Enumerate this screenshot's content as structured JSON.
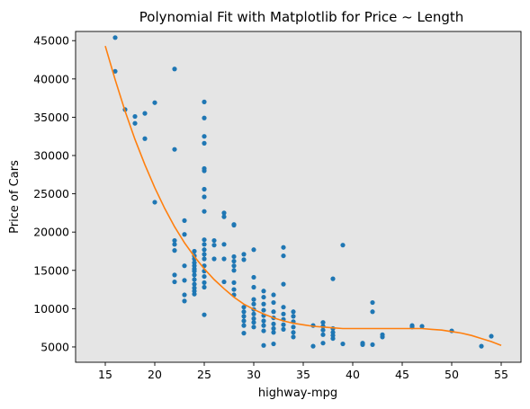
{
  "chart_data": {
    "type": "scatter",
    "title": "Polynomial Fit with Matplotlib for Price ~ Length",
    "xlabel": "highway-mpg",
    "ylabel": "Price of Cars",
    "xlim": [
      12.0,
      57.0
    ],
    "ylim": [
      3000,
      46200
    ],
    "x_ticks": [
      15,
      20,
      25,
      30,
      35,
      40,
      45,
      50,
      55
    ],
    "y_ticks": [
      5000,
      10000,
      15000,
      20000,
      25000,
      30000,
      35000,
      40000,
      45000
    ],
    "plot_background": "#e5e5e5",
    "colors": {
      "points": "#1f77b4",
      "fit": "#ff7f0e"
    },
    "series": [
      {
        "kind": "points",
        "points": [
          [
            16,
            45400
          ],
          [
            16,
            41000
          ],
          [
            17,
            36000
          ],
          [
            18,
            35100
          ],
          [
            18,
            34200
          ],
          [
            19,
            35500
          ],
          [
            19,
            32200
          ],
          [
            20,
            36900
          ],
          [
            20,
            23900
          ],
          [
            22,
            41300
          ],
          [
            22,
            30800
          ],
          [
            22,
            18900
          ],
          [
            22,
            18400
          ],
          [
            22,
            17600
          ],
          [
            22,
            14400
          ],
          [
            22,
            13500
          ],
          [
            23,
            21500
          ],
          [
            23,
            19700
          ],
          [
            23,
            15600
          ],
          [
            23,
            13700
          ],
          [
            23,
            11800
          ],
          [
            23,
            11000
          ],
          [
            24,
            17500
          ],
          [
            24,
            16900
          ],
          [
            24,
            16500
          ],
          [
            24,
            16000
          ],
          [
            24,
            15600
          ],
          [
            24,
            15200
          ],
          [
            24,
            14900
          ],
          [
            24,
            14400
          ],
          [
            24,
            13800
          ],
          [
            24,
            13200
          ],
          [
            24,
            12700
          ],
          [
            24,
            12300
          ],
          [
            24,
            11900
          ],
          [
            25,
            37000
          ],
          [
            25,
            34900
          ],
          [
            25,
            32500
          ],
          [
            25,
            31600
          ],
          [
            25,
            28300
          ],
          [
            25,
            28000
          ],
          [
            25,
            25600
          ],
          [
            25,
            24600
          ],
          [
            25,
            22700
          ],
          [
            25,
            19000
          ],
          [
            25,
            18400
          ],
          [
            25,
            17700
          ],
          [
            25,
            17100
          ],
          [
            25,
            16500
          ],
          [
            25,
            15600
          ],
          [
            25,
            14900
          ],
          [
            25,
            14200
          ],
          [
            25,
            13400
          ],
          [
            25,
            12800
          ],
          [
            25,
            9200
          ],
          [
            26,
            18900
          ],
          [
            26,
            18300
          ],
          [
            26,
            16500
          ],
          [
            27,
            22500
          ],
          [
            27,
            22000
          ],
          [
            27,
            18400
          ],
          [
            27,
            16500
          ],
          [
            27,
            13500
          ],
          [
            28,
            21000
          ],
          [
            28,
            20900
          ],
          [
            28,
            16800
          ],
          [
            28,
            16200
          ],
          [
            28,
            15600
          ],
          [
            28,
            15000
          ],
          [
            28,
            13400
          ],
          [
            28,
            12500
          ],
          [
            28,
            11800
          ],
          [
            29,
            17100
          ],
          [
            29,
            16400
          ],
          [
            29,
            10200
          ],
          [
            29,
            9600
          ],
          [
            29,
            9000
          ],
          [
            29,
            8400
          ],
          [
            29,
            7800
          ],
          [
            29,
            6800
          ],
          [
            30,
            17700
          ],
          [
            30,
            14100
          ],
          [
            30,
            12800
          ],
          [
            30,
            11200
          ],
          [
            30,
            10600
          ],
          [
            30,
            9900
          ],
          [
            30,
            9300
          ],
          [
            30,
            8700
          ],
          [
            30,
            8200
          ],
          [
            30,
            7600
          ],
          [
            31,
            12300
          ],
          [
            31,
            11500
          ],
          [
            31,
            10600
          ],
          [
            31,
            9800
          ],
          [
            31,
            9100
          ],
          [
            31,
            8400
          ],
          [
            31,
            7800
          ],
          [
            31,
            7100
          ],
          [
            31,
            5200
          ],
          [
            32,
            11800
          ],
          [
            32,
            10800
          ],
          [
            32,
            9600
          ],
          [
            32,
            8800
          ],
          [
            32,
            8000
          ],
          [
            32,
            7400
          ],
          [
            32,
            6900
          ],
          [
            32,
            5400
          ],
          [
            33,
            18000
          ],
          [
            33,
            16900
          ],
          [
            33,
            13200
          ],
          [
            33,
            10200
          ],
          [
            33,
            9300
          ],
          [
            33,
            8600
          ],
          [
            33,
            7900
          ],
          [
            33,
            7300
          ],
          [
            34,
            9600
          ],
          [
            34,
            9000
          ],
          [
            34,
            8300
          ],
          [
            34,
            7600
          ],
          [
            34,
            6900
          ],
          [
            34,
            6300
          ],
          [
            36,
            7800
          ],
          [
            36,
            5100
          ],
          [
            37,
            8200
          ],
          [
            37,
            7700
          ],
          [
            37,
            7200
          ],
          [
            37,
            6600
          ],
          [
            37,
            5500
          ],
          [
            38,
            13900
          ],
          [
            38,
            7400
          ],
          [
            38,
            6900
          ],
          [
            38,
            6500
          ],
          [
            38,
            6100
          ],
          [
            39,
            18300
          ],
          [
            39,
            5400
          ],
          [
            41,
            5500
          ],
          [
            41,
            5300
          ],
          [
            42,
            10800
          ],
          [
            42,
            9600
          ],
          [
            42,
            5300
          ],
          [
            43,
            6600
          ],
          [
            43,
            6300
          ],
          [
            46,
            7800
          ],
          [
            46,
            7600
          ],
          [
            47,
            7700
          ],
          [
            50,
            7100
          ],
          [
            53,
            5100
          ],
          [
            54,
            6400
          ]
        ]
      },
      {
        "kind": "fit-line",
        "points": [
          [
            15,
            44300
          ],
          [
            16,
            39900
          ],
          [
            17,
            35800
          ],
          [
            18,
            32100
          ],
          [
            19,
            28800
          ],
          [
            20,
            25800
          ],
          [
            21,
            23100
          ],
          [
            22,
            20700
          ],
          [
            23,
            18600
          ],
          [
            24,
            16800
          ],
          [
            25,
            15200
          ],
          [
            26,
            13800
          ],
          [
            27,
            12600
          ],
          [
            28,
            11500
          ],
          [
            29,
            10600
          ],
          [
            30,
            9900
          ],
          [
            31,
            9300
          ],
          [
            32,
            8800
          ],
          [
            33,
            8400
          ],
          [
            34,
            8100
          ],
          [
            35,
            7900
          ],
          [
            36,
            7700
          ],
          [
            37,
            7600
          ],
          [
            38,
            7500
          ],
          [
            39,
            7400
          ],
          [
            40,
            7400
          ],
          [
            41,
            7400
          ],
          [
            42,
            7400
          ],
          [
            43,
            7400
          ],
          [
            44,
            7400
          ],
          [
            45,
            7400
          ],
          [
            46,
            7400
          ],
          [
            47,
            7400
          ],
          [
            48,
            7300
          ],
          [
            49,
            7200
          ],
          [
            50,
            7000
          ],
          [
            51,
            6800
          ],
          [
            52,
            6500
          ],
          [
            53,
            6100
          ],
          [
            54,
            5700
          ],
          [
            55,
            5200
          ]
        ]
      }
    ]
  }
}
